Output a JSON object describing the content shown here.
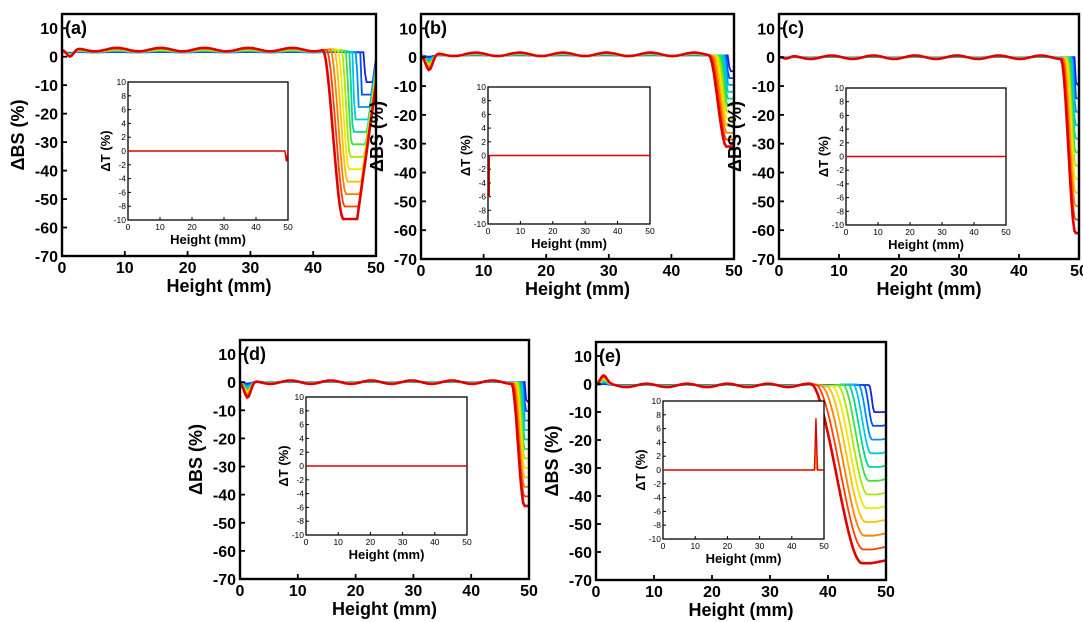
{
  "chart_data": [
    {
      "type": "line",
      "panel_label": "(a)",
      "xlabel": "Height (mm)",
      "ylabel": "ΔBS (%)",
      "xlim": [
        0,
        50
      ],
      "ylim": [
        -70,
        15
      ],
      "xticks": [
        "0",
        "10",
        "20",
        "30",
        "40",
        "50"
      ],
      "yticks": [
        "10",
        "0",
        "-10",
        "-20",
        "-30",
        "-40",
        "-50",
        "-60",
        "-70"
      ],
      "curve_shape": {
        "edge_dip": -3,
        "plateau": 2.5,
        "drop_start": 41.5,
        "well_center": 47,
        "well_min": -57,
        "well_half_width": 2.2,
        "end_value": -12
      },
      "series_colors": [
        "#1a20e0",
        "#0050ff",
        "#0090ff",
        "#00c8e8",
        "#00d890",
        "#40e040",
        "#a8e800",
        "#f0e800",
        "#ffc000",
        "#ff8000",
        "#ff4000",
        "#e00000"
      ],
      "inset": {
        "xlabel": "Height (mm)",
        "ylabel": "ΔT (%)",
        "xlim": [
          0,
          50
        ],
        "ylim": [
          -10,
          10
        ],
        "xticks": [
          "0",
          "10",
          "20",
          "30",
          "40",
          "50"
        ],
        "yticks": [
          "10",
          "8",
          "6",
          "4",
          "2",
          "0",
          "-2",
          "-4",
          "-6",
          "-8",
          "-10"
        ],
        "line_value": 0,
        "spike": {
          "x": 49.5,
          "y": -1.5
        }
      }
    },
    {
      "type": "line",
      "panel_label": "(b)",
      "xlabel": "Height (mm)",
      "ylabel": "ΔBS (%)",
      "xlim": [
        0,
        50
      ],
      "ylim": [
        -70,
        15
      ],
      "xticks": [
        "0",
        "10",
        "20",
        "30",
        "40",
        "50"
      ],
      "yticks": [
        "10",
        "0",
        "-10",
        "-20",
        "-30",
        "-40",
        "-50",
        "-60",
        "-70"
      ],
      "curve_shape": {
        "edge_dip": -6,
        "plateau": 1,
        "drop_start": 46,
        "well_center": 49.6,
        "well_min": -31,
        "well_half_width": 0.8,
        "end_value": -31
      },
      "series_colors": [
        "#1a20e0",
        "#0050ff",
        "#0090ff",
        "#00c8e8",
        "#00d890",
        "#40e040",
        "#a8e800",
        "#f0e800",
        "#ffc000",
        "#ff8000",
        "#ff4000",
        "#e00000"
      ],
      "inset": {
        "xlabel": "Height (mm)",
        "ylabel": "ΔT (%)",
        "xlim": [
          0,
          50
        ],
        "ylim": [
          -10,
          10
        ],
        "xticks": [
          "0",
          "10",
          "20",
          "30",
          "40",
          "50"
        ],
        "yticks": [
          "10",
          "8",
          "6",
          "4",
          "2",
          "0",
          "-2",
          "-4",
          "-6",
          "-8",
          "-10"
        ],
        "line_value": 0,
        "spike": {
          "x": 0.4,
          "y": -6
        }
      }
    },
    {
      "type": "line",
      "panel_label": "(c)",
      "xlabel": "Height (mm)",
      "ylabel": "ΔBS (%)",
      "xlim": [
        0,
        50
      ],
      "ylim": [
        -70,
        15
      ],
      "xticks": [
        "0",
        "10",
        "20",
        "30",
        "40",
        "50"
      ],
      "yticks": [
        "10",
        "0",
        "-10",
        "-20",
        "-30",
        "-40",
        "-50",
        "-60",
        "-70"
      ],
      "curve_shape": {
        "edge_dip": -1,
        "plateau": 0,
        "drop_start": 47,
        "well_center": 50,
        "well_min": -61,
        "well_half_width": 0.6,
        "end_value": -61
      },
      "series_colors": [
        "#1a20e0",
        "#0050ff",
        "#0090ff",
        "#00c8e8",
        "#00d890",
        "#40e040",
        "#a8e800",
        "#f0e800",
        "#ffc000",
        "#ff8000",
        "#ff4000",
        "#e00000"
      ],
      "inset": {
        "xlabel": "Height (mm)",
        "ylabel": "ΔT (%)",
        "xlim": [
          0,
          50
        ],
        "ylim": [
          -10,
          10
        ],
        "xticks": [
          "0",
          "10",
          "20",
          "30",
          "40",
          "50"
        ],
        "yticks": [
          "10",
          "8",
          "6",
          "4",
          "2",
          "0",
          "-2",
          "-4",
          "-6",
          "-8",
          "-10"
        ],
        "line_value": 0,
        "spike": null
      }
    },
    {
      "type": "line",
      "panel_label": "(d)",
      "xlabel": "Height (mm)",
      "ylabel": "ΔBS (%)",
      "xlim": [
        0,
        50
      ],
      "ylim": [
        -70,
        15
      ],
      "xticks": [
        "0",
        "10",
        "20",
        "30",
        "40",
        "50"
      ],
      "yticks": [
        "10",
        "0",
        "-10",
        "-20",
        "-30",
        "-40",
        "-50",
        "-60",
        "-70"
      ],
      "curve_shape": {
        "edge_dip": -6,
        "plateau": 0,
        "drop_start": 47,
        "well_center": 50,
        "well_min": -44,
        "well_half_width": 0.8,
        "end_value": -44
      },
      "series_colors": [
        "#1a20e0",
        "#0050ff",
        "#0090ff",
        "#00c8e8",
        "#00d890",
        "#40e040",
        "#a8e800",
        "#f0e800",
        "#ffc000",
        "#ff8000",
        "#ff4000",
        "#e00000"
      ],
      "inset": {
        "xlabel": "Height (mm)",
        "ylabel": "ΔT (%)",
        "xlim": [
          0,
          50
        ],
        "ylim": [
          -10,
          10
        ],
        "xticks": [
          "0",
          "10",
          "20",
          "30",
          "40",
          "50"
        ],
        "yticks": [
          "10",
          "8",
          "6",
          "4",
          "2",
          "0",
          "-2",
          "-4",
          "-6",
          "-8",
          "-10"
        ],
        "line_value": 0,
        "spike": null
      }
    },
    {
      "type": "line",
      "panel_label": "(e)",
      "xlabel": "Height (mm)",
      "ylabel": "ΔBS (%)",
      "xlim": [
        0,
        50
      ],
      "ylim": [
        -70,
        15
      ],
      "xticks": [
        "0",
        "10",
        "20",
        "30",
        "40",
        "50"
      ],
      "yticks": [
        "10",
        "0",
        "-10",
        "-20",
        "-30",
        "-40",
        "-50",
        "-60",
        "-70"
      ],
      "curve_shape": {
        "edge_dip": 3,
        "plateau": -0.5,
        "drop_start": 37,
        "well_center": 47.5,
        "well_min": -64,
        "well_half_width": 1.6,
        "end_value": -63
      },
      "series_colors": [
        "#1a20e0",
        "#0050ff",
        "#0090ff",
        "#00c8e8",
        "#00d890",
        "#40e040",
        "#a8e800",
        "#f0e800",
        "#ffc000",
        "#ff8000",
        "#ff4000",
        "#e00000"
      ],
      "inset": {
        "xlabel": "Height (mm)",
        "ylabel": "ΔT (%)",
        "xlim": [
          0,
          50
        ],
        "ylim": [
          -10,
          10
        ],
        "xticks": [
          "0",
          "10",
          "20",
          "30",
          "40",
          "50"
        ],
        "yticks": [
          "10",
          "8",
          "6",
          "4",
          "2",
          "0",
          "-2",
          "-4",
          "-6",
          "-8",
          "-10"
        ],
        "line_value": 0,
        "spike": {
          "x": 47.5,
          "y": 7.5
        }
      }
    }
  ]
}
